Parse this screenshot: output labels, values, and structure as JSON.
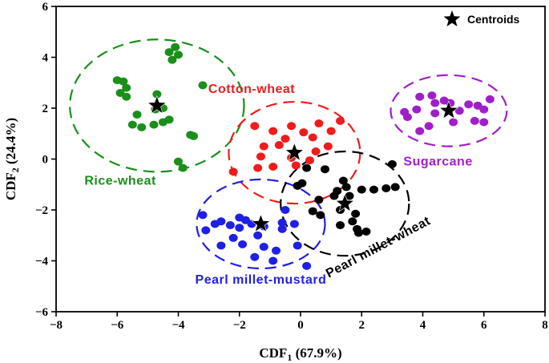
{
  "chart_data": {
    "type": "scatter",
    "title": "",
    "xlabel": "CDF",
    "xlabel_sub": "1",
    "xlabel_suffix": " (67.9%)",
    "ylabel": "CDF",
    "ylabel_sub": "2",
    "ylabel_suffix": " (24.4%)",
    "xlim": [
      -8,
      8
    ],
    "ylim": [
      -6,
      6
    ],
    "xticks": [
      -8,
      -6,
      -4,
      -2,
      0,
      2,
      4,
      6,
      8
    ],
    "yticks": [
      -6,
      -4,
      -2,
      0,
      2,
      4,
      6
    ],
    "xtick_labels": [
      "−8",
      "−6",
      "−4",
      "−2",
      "0",
      "2",
      "4",
      "6",
      "8"
    ],
    "ytick_labels": [
      "−6",
      "−4",
      "−2",
      "0",
      "2",
      "4",
      "6"
    ],
    "legend": {
      "label": "Centroids",
      "position": "top-right"
    },
    "series": [
      {
        "name": "Rice-wheat",
        "color": "#1a8f1a",
        "centroid": [
          -4.7,
          2.1
        ],
        "ellipse": {
          "cx": -4.7,
          "cy": 2.1,
          "rx": 2.85,
          "ry": 2.6
        },
        "label_anchor": [
          -5.9,
          -1.0
        ],
        "points": [
          [
            -4.1,
            4.4
          ],
          [
            -4.3,
            4.2
          ],
          [
            -4.0,
            4.1
          ],
          [
            -4.2,
            3.9
          ],
          [
            -6.0,
            3.1
          ],
          [
            -5.8,
            3.05
          ],
          [
            -5.7,
            2.8
          ],
          [
            -5.9,
            2.6
          ],
          [
            -5.7,
            2.45
          ],
          [
            -4.7,
            2.55
          ],
          [
            -3.2,
            2.9
          ],
          [
            -4.5,
            2.0
          ],
          [
            -5.35,
            1.75
          ],
          [
            -4.75,
            1.95
          ],
          [
            -4.3,
            1.55
          ],
          [
            -4.5,
            1.45
          ],
          [
            -5.5,
            1.35
          ],
          [
            -5.2,
            1.25
          ],
          [
            -4.8,
            1.35
          ],
          [
            -3.6,
            0.95
          ],
          [
            -3.5,
            0.9
          ],
          [
            -4.0,
            -0.1
          ],
          [
            -3.85,
            -0.35
          ]
        ]
      },
      {
        "name": "Cotton-wheat",
        "color": "#ee1c1c",
        "centroid": [
          -0.2,
          0.25
        ],
        "ellipse": {
          "cx": -0.2,
          "cy": 0.25,
          "rx": 2.15,
          "ry": 2.0
        },
        "label_anchor": [
          -1.6,
          2.6
        ],
        "points": [
          [
            -1.5,
            1.3
          ],
          [
            -0.3,
            1.3
          ],
          [
            0.6,
            1.4
          ],
          [
            1.3,
            1.5
          ],
          [
            -0.9,
            1.1
          ],
          [
            0.1,
            1.05
          ],
          [
            1.0,
            1.1
          ],
          [
            -0.5,
            0.8
          ],
          [
            0.4,
            0.85
          ],
          [
            -1.2,
            0.5
          ],
          [
            -0.7,
            0.55
          ],
          [
            0.9,
            0.5
          ],
          [
            -1.3,
            0.1
          ],
          [
            0.5,
            0.3
          ],
          [
            -0.3,
            0.05
          ],
          [
            0.3,
            -0.05
          ],
          [
            -0.9,
            -0.3
          ],
          [
            -1.4,
            -0.35
          ],
          [
            -0.15,
            -0.25
          ],
          [
            -2.2,
            -0.5
          ]
        ]
      },
      {
        "name": "Sugarcane",
        "color": "#a01eca",
        "centroid": [
          4.85,
          1.9
        ],
        "ellipse": {
          "cx": 4.85,
          "cy": 1.9,
          "rx": 1.9,
          "ry": 1.4
        },
        "label_anchor": [
          4.5,
          -0.25
        ],
        "points": [
          [
            3.9,
            2.45
          ],
          [
            4.3,
            2.5
          ],
          [
            4.7,
            2.3
          ],
          [
            6.2,
            2.35
          ],
          [
            4.4,
            2.2
          ],
          [
            4.9,
            2.2
          ],
          [
            5.5,
            2.15
          ],
          [
            5.8,
            2.1
          ],
          [
            3.4,
            1.85
          ],
          [
            3.8,
            1.95
          ],
          [
            4.4,
            1.8
          ],
          [
            5.2,
            1.9
          ],
          [
            6.0,
            1.95
          ],
          [
            3.5,
            1.65
          ],
          [
            5.0,
            1.45
          ],
          [
            5.7,
            1.5
          ],
          [
            4.2,
            1.3
          ],
          [
            6.0,
            1.45
          ],
          [
            3.9,
            1.1
          ]
        ]
      },
      {
        "name": "Pearl millet-mustard",
        "color": "#1f1fe6",
        "centroid": [
          -1.3,
          -2.55
        ],
        "ellipse": {
          "cx": -1.3,
          "cy": -2.55,
          "rx": 2.1,
          "ry": 1.75
        },
        "label_anchor": [
          -1.3,
          -4.9
        ],
        "points": [
          [
            -3.2,
            -2.2
          ],
          [
            -0.5,
            -2.0
          ],
          [
            -2.0,
            -2.3
          ],
          [
            -1.8,
            -2.4
          ],
          [
            -2.8,
            -2.55
          ],
          [
            -2.6,
            -2.45
          ],
          [
            -2.3,
            -2.6
          ],
          [
            -2.0,
            -2.7
          ],
          [
            -1.6,
            -2.55
          ],
          [
            -1.2,
            -2.65
          ],
          [
            -0.6,
            -2.5
          ],
          [
            -0.2,
            -2.55
          ],
          [
            -3.1,
            -2.8
          ],
          [
            -2.2,
            -3.1
          ],
          [
            -0.6,
            -2.75
          ],
          [
            -1.4,
            -3.0
          ],
          [
            -2.6,
            -3.4
          ],
          [
            -1.9,
            -3.35
          ],
          [
            -1.2,
            -3.45
          ],
          [
            -0.8,
            -3.6
          ],
          [
            -0.1,
            -3.4
          ],
          [
            -1.5,
            -3.85
          ],
          [
            -0.9,
            -4.0
          ],
          [
            0.2,
            -4.2
          ]
        ]
      },
      {
        "name": "Pearl millet-wheat",
        "color": "#000000",
        "centroid": [
          1.45,
          -1.75
        ],
        "ellipse": {
          "cx": 1.45,
          "cy": -1.75,
          "rx": 2.1,
          "ry": 2.05
        },
        "label_anchor": [
          2.6,
          -3.6
        ],
        "label_rotate": -28,
        "points": [
          [
            3.0,
            -0.2
          ],
          [
            0.2,
            -0.35
          ],
          [
            0.8,
            -0.4
          ],
          [
            0.05,
            -0.95
          ],
          [
            -0.1,
            -1.05
          ],
          [
            1.4,
            -0.85
          ],
          [
            1.2,
            -1.25
          ],
          [
            1.5,
            -1.1
          ],
          [
            1.1,
            -1.45
          ],
          [
            1.6,
            -1.45
          ],
          [
            2.0,
            -1.2
          ],
          [
            2.4,
            -1.2
          ],
          [
            2.8,
            -1.15
          ],
          [
            3.1,
            -1.1
          ],
          [
            0.6,
            -1.6
          ],
          [
            0.4,
            -2.05
          ],
          [
            1.3,
            -2.0
          ],
          [
            1.8,
            -2.15
          ],
          [
            1.7,
            -2.45
          ],
          [
            1.3,
            -2.6
          ],
          [
            1.85,
            -2.75
          ],
          [
            1.9,
            -2.9
          ],
          [
            2.15,
            -2.85
          ],
          [
            0.65,
            -2.2
          ]
        ]
      }
    ]
  }
}
